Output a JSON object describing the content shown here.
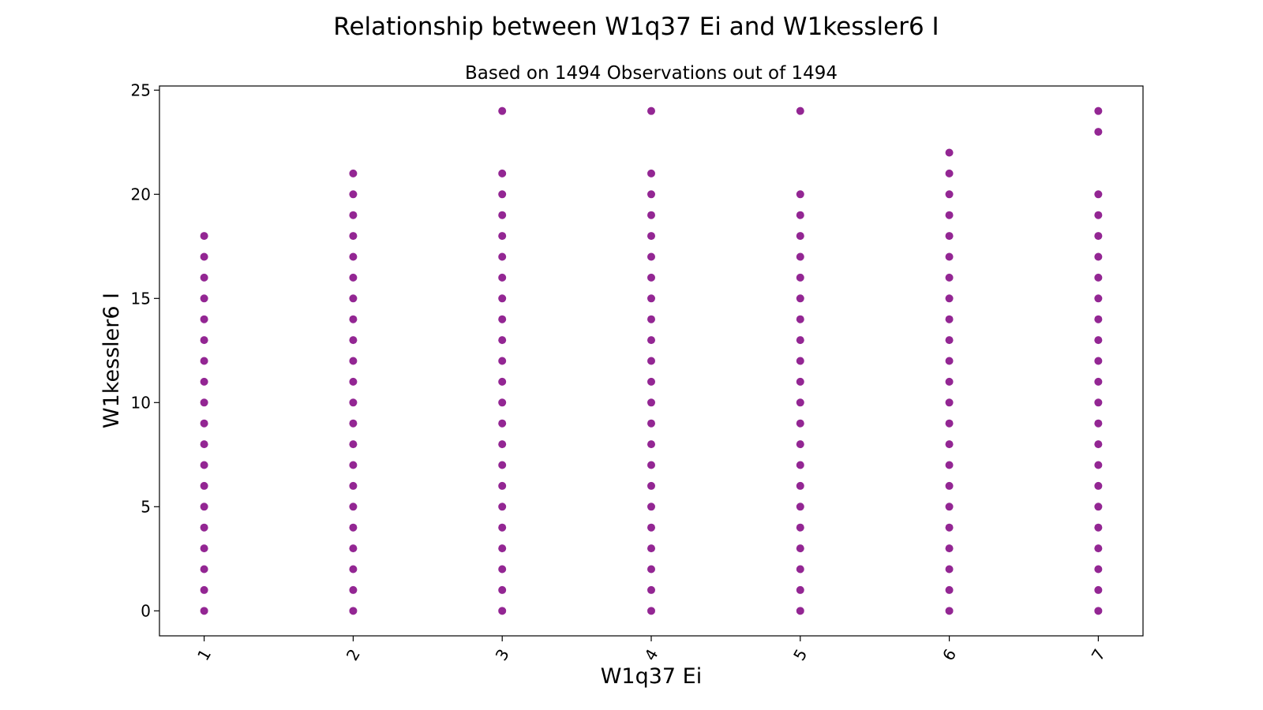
{
  "chart_data": {
    "type": "scatter",
    "title": "Relationship between W1q37 Ei and W1kessler6 I",
    "subtitle": "Based on 1494 Observations out of 1494",
    "xlabel": "W1q37 Ei",
    "ylabel": "W1kessler6 I",
    "x_ticks": [
      "1",
      "2",
      "3",
      "4",
      "5",
      "6",
      "7"
    ],
    "y_ticks": [
      "0",
      "5",
      "10",
      "15",
      "20",
      "25"
    ],
    "xlim": [
      0.7,
      7.3
    ],
    "ylim": [
      -1.2,
      25.2
    ],
    "marker_color": "#800080",
    "grid": false,
    "legend": "none",
    "series": [
      {
        "points": [
          {
            "x": 1,
            "y": [
              0,
              1,
              2,
              3,
              4,
              5,
              6,
              7,
              8,
              9,
              10,
              11,
              12,
              13,
              14,
              15,
              16,
              17,
              18
            ]
          },
          {
            "x": 2,
            "y": [
              0,
              1,
              2,
              3,
              4,
              5,
              6,
              7,
              8,
              9,
              10,
              11,
              12,
              13,
              14,
              15,
              16,
              17,
              18,
              19,
              20,
              21
            ]
          },
          {
            "x": 3,
            "y": [
              0,
              1,
              2,
              3,
              4,
              5,
              6,
              7,
              8,
              9,
              10,
              11,
              12,
              13,
              14,
              15,
              16,
              17,
              18,
              19,
              20,
              21,
              24
            ]
          },
          {
            "x": 4,
            "y": [
              0,
              1,
              2,
              3,
              4,
              5,
              6,
              7,
              8,
              9,
              10,
              11,
              12,
              13,
              14,
              15,
              16,
              17,
              18,
              19,
              20,
              21,
              24
            ]
          },
          {
            "x": 5,
            "y": [
              0,
              1,
              2,
              3,
              4,
              5,
              6,
              7,
              8,
              9,
              10,
              11,
              12,
              13,
              14,
              15,
              16,
              17,
              18,
              19,
              20,
              24
            ]
          },
          {
            "x": 6,
            "y": [
              0,
              1,
              2,
              3,
              4,
              5,
              6,
              7,
              8,
              9,
              10,
              11,
              12,
              13,
              14,
              15,
              16,
              17,
              18,
              19,
              20,
              21,
              22
            ]
          },
          {
            "x": 7,
            "y": [
              0,
              1,
              2,
              3,
              4,
              5,
              6,
              7,
              8,
              9,
              10,
              11,
              12,
              13,
              14,
              15,
              16,
              17,
              18,
              19,
              20,
              23,
              24
            ]
          }
        ]
      }
    ]
  }
}
